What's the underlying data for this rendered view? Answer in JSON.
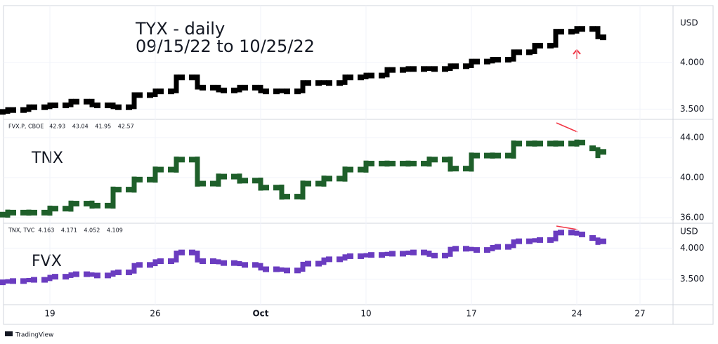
{
  "chart_data": [
    {
      "type": "ohlc",
      "title": "TYX - daily",
      "subtitle": "09/15/22 to 10/25/22",
      "unit": "USD",
      "color": "#000000",
      "ylim": [
        3.39,
        4.61
      ],
      "yticks": [
        {
          "value": 3.5,
          "label": "3.500"
        },
        {
          "value": 4,
          "label": "4.000"
        }
      ],
      "grid": true,
      "open": [
        3.47,
        3.49,
        3.52,
        3.54,
        3.58,
        3.54,
        3.52,
        3.65,
        3.69,
        3.84,
        3.73,
        3.7,
        3.73,
        3.69,
        3.69,
        3.78,
        3.78,
        3.84,
        3.86,
        3.92,
        3.93,
        3.93,
        3.96,
        4.01,
        4.03,
        4.11,
        4.18,
        4.33,
        4.36,
        null,
        null
      ],
      "high": [
        3.52,
        3.55,
        3.57,
        3.61,
        3.61,
        3.57,
        3.68,
        3.72,
        3.87,
        3.87,
        3.76,
        3.76,
        3.76,
        3.72,
        3.81,
        3.81,
        3.87,
        3.89,
        3.95,
        3.96,
        3.96,
        3.99,
        4.04,
        4.06,
        4.14,
        4.21,
        4.36,
        4.39,
        4.39,
        null,
        null
      ],
      "low": [
        3.45,
        3.47,
        3.5,
        3.52,
        3.52,
        3.5,
        3.5,
        3.63,
        3.67,
        3.71,
        3.68,
        3.68,
        3.67,
        3.67,
        3.67,
        3.76,
        3.76,
        3.82,
        3.84,
        3.9,
        3.91,
        3.91,
        3.94,
        3.99,
        4.01,
        4.09,
        4.16,
        4.31,
        4.25,
        null,
        null
      ],
      "close": [
        3.49,
        3.52,
        3.54,
        3.58,
        3.54,
        3.52,
        3.65,
        3.69,
        3.84,
        3.73,
        3.7,
        3.73,
        3.69,
        3.69,
        3.78,
        3.78,
        3.84,
        3.86,
        3.92,
        3.93,
        3.93,
        3.96,
        4.01,
        4.03,
        4.11,
        4.18,
        4.33,
        4.36,
        4.27,
        null,
        null
      ]
    },
    {
      "type": "ohlc",
      "label": "TNX",
      "symbol": "FVX.P, CBOE",
      "color": "#1e5f2a",
      "ylim": [
        35.44,
        45.82
      ],
      "yticks": [
        {
          "value": 36,
          "label": "36.00"
        },
        {
          "value": 40,
          "label": "40.00"
        },
        {
          "value": 44,
          "label": "44.00"
        }
      ],
      "grid": true,
      "open": [
        36.3,
        36.5,
        36.5,
        36.9,
        37.4,
        37.2,
        38.8,
        39.8,
        40.8,
        41.8,
        39.4,
        40.1,
        39.7,
        39.0,
        38.1,
        39.4,
        39.9,
        40.8,
        41.4,
        41.4,
        41.4,
        41.8,
        40.9,
        42.2,
        42.2,
        43.4,
        43.4,
        43.4,
        42.93,
        null,
        null
      ],
      "high": [
        36.8,
        36.8,
        37.2,
        37.7,
        37.7,
        39.1,
        40.1,
        41.1,
        42.1,
        42.1,
        40.4,
        40.4,
        40.0,
        39.3,
        39.7,
        40.2,
        41.1,
        41.7,
        41.7,
        41.7,
        42.1,
        42.1,
        42.5,
        42.5,
        43.7,
        43.7,
        43.7,
        43.8,
        43.04,
        null,
        null
      ],
      "low": [
        36.0,
        36.2,
        36.2,
        36.6,
        36.9,
        36.9,
        38.5,
        39.5,
        40.5,
        39.1,
        39.1,
        39.4,
        38.7,
        37.8,
        37.8,
        39.1,
        39.6,
        40.5,
        41.1,
        41.1,
        41.1,
        40.6,
        40.6,
        41.9,
        41.9,
        43.1,
        43.1,
        43.1,
        41.95,
        null,
        null
      ],
      "close": [
        36.5,
        36.5,
        36.9,
        37.4,
        37.2,
        38.8,
        39.8,
        40.8,
        41.8,
        39.4,
        40.1,
        39.7,
        39.0,
        38.1,
        39.4,
        39.9,
        40.8,
        41.4,
        41.4,
        41.4,
        41.8,
        40.9,
        42.2,
        42.2,
        43.4,
        43.4,
        43.4,
        43.5,
        42.57,
        null,
        null
      ]
    },
    {
      "type": "ohlc",
      "label": "FVX",
      "symbol": "TNX, TVC",
      "unit": "USD",
      "color": "#6a3cc0",
      "ylim": [
        3.09,
        4.4
      ],
      "yticks": [
        {
          "value": 3.5,
          "label": "3.500"
        },
        {
          "value": 4,
          "label": "4.000"
        }
      ],
      "grid": true,
      "categories": [
        null,
        null,
        "19",
        null,
        null,
        null,
        null,
        "26",
        null,
        null,
        null,
        null,
        "Oct",
        null,
        null,
        null,
        null,
        "10",
        null,
        null,
        null,
        null,
        "17",
        null,
        null,
        null,
        null,
        "24",
        null,
        null,
        "27"
      ],
      "open": [
        3.45,
        3.47,
        3.49,
        3.54,
        3.58,
        3.56,
        3.61,
        3.73,
        3.79,
        3.93,
        3.79,
        3.76,
        3.73,
        3.66,
        3.64,
        3.75,
        3.82,
        3.87,
        3.89,
        3.91,
        3.93,
        3.88,
        3.99,
        3.97,
        4.02,
        4.11,
        4.13,
        4.25,
        4.163,
        null,
        null
      ],
      "high": [
        3.5,
        3.52,
        3.57,
        3.61,
        3.61,
        3.64,
        3.76,
        3.82,
        3.96,
        3.96,
        3.82,
        3.79,
        3.76,
        3.69,
        3.78,
        3.85,
        3.9,
        3.92,
        3.94,
        3.96,
        3.96,
        4.02,
        4.02,
        4.05,
        4.14,
        4.16,
        4.28,
        4.28,
        4.171,
        null,
        null
      ],
      "low": [
        3.43,
        3.45,
        3.47,
        3.52,
        3.54,
        3.54,
        3.59,
        3.71,
        3.77,
        3.77,
        3.74,
        3.71,
        3.64,
        3.62,
        3.62,
        3.73,
        3.8,
        3.85,
        3.87,
        3.89,
        3.86,
        3.86,
        3.95,
        3.95,
        4.0,
        4.09,
        4.11,
        4.2,
        4.052,
        null,
        null
      ],
      "close": [
        3.47,
        3.49,
        3.54,
        3.58,
        3.56,
        3.61,
        3.73,
        3.79,
        3.93,
        3.79,
        3.76,
        3.73,
        3.66,
        3.64,
        3.75,
        3.82,
        3.87,
        3.89,
        3.91,
        3.93,
        3.88,
        3.99,
        3.97,
        4.02,
        4.11,
        4.13,
        4.25,
        4.22,
        4.109,
        null,
        null
      ]
    }
  ],
  "footer": "TradingView"
}
